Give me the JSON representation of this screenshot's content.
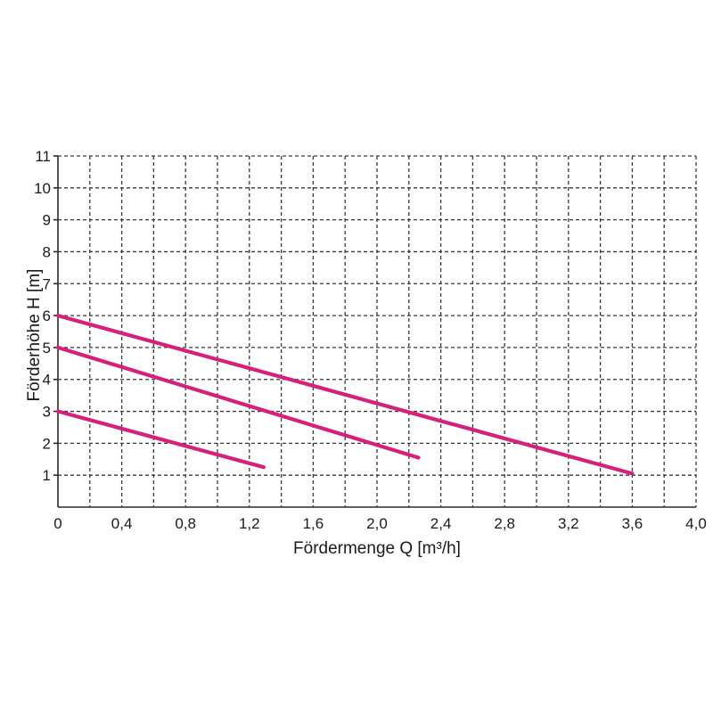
{
  "chart_data": {
    "type": "line",
    "xlabel": "Fördermenge Q [m³/h]",
    "ylabel": "Förderhöhe H [m]",
    "xlim": [
      0,
      4.0
    ],
    "ylim": [
      0,
      11
    ],
    "x_ticks": [
      "0",
      "0,4",
      "0,8",
      "1,2",
      "1,6",
      "2,0",
      "2,4",
      "2,8",
      "3,2",
      "3,6",
      "4,0"
    ],
    "x_tick_values": [
      0,
      0.4,
      0.8,
      1.2,
      1.6,
      2.0,
      2.4,
      2.8,
      3.2,
      3.6,
      4.0
    ],
    "y_ticks": [
      "1",
      "2",
      "3",
      "4",
      "5",
      "6",
      "7",
      "8",
      "9",
      "10",
      "11"
    ],
    "y_tick_values": [
      1,
      2,
      3,
      4,
      5,
      6,
      7,
      8,
      9,
      10,
      11
    ],
    "grid": true,
    "grid_style": "dashed",
    "line_color": "#d6207a",
    "series": [
      {
        "points": [
          [
            0,
            6.0
          ],
          [
            3.6,
            1.05
          ]
        ]
      },
      {
        "points": [
          [
            0,
            5.0
          ],
          [
            2.26,
            1.55
          ]
        ]
      },
      {
        "points": [
          [
            0,
            3.0
          ],
          [
            1.29,
            1.25
          ]
        ]
      }
    ]
  }
}
